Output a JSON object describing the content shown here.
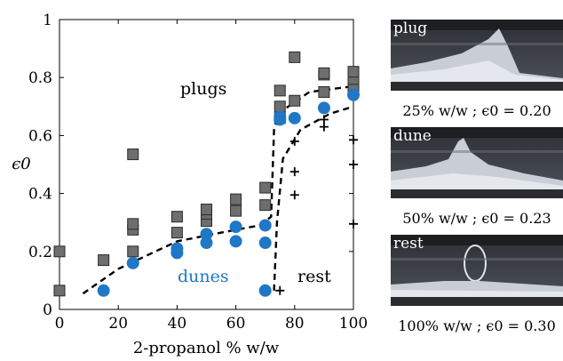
{
  "chart_data": {
    "type": "scatter",
    "xlabel": "2-propanol % w/w",
    "ylabel": "ϵ0",
    "xlim": [
      0,
      100
    ],
    "ylim": [
      0,
      1
    ],
    "xticks": [
      "0",
      "20",
      "40",
      "60",
      "80",
      "100"
    ],
    "yticks": [
      "0",
      "0.2",
      "0.4",
      "0.6",
      "0.8",
      "1"
    ],
    "grid": false,
    "regions": {
      "plugs": "plugs",
      "dunes": "dunes",
      "rest": "rest"
    },
    "series": [
      {
        "marker": "square",
        "color": "#6e6e6e",
        "points": [
          [
            0,
            0.065
          ],
          [
            0,
            0.2
          ],
          [
            15,
            0.17
          ],
          [
            25,
            0.2
          ],
          [
            25,
            0.275
          ],
          [
            25,
            0.295
          ],
          [
            25,
            0.535
          ],
          [
            40,
            0.265
          ],
          [
            40,
            0.32
          ],
          [
            50,
            0.305
          ],
          [
            50,
            0.33
          ],
          [
            50,
            0.345
          ],
          [
            60,
            0.34
          ],
          [
            60,
            0.38
          ],
          [
            70,
            0.36
          ],
          [
            70,
            0.42
          ],
          [
            75,
            0.66
          ],
          [
            75,
            0.7
          ],
          [
            75,
            0.755
          ],
          [
            80,
            0.72
          ],
          [
            80,
            0.87
          ],
          [
            90,
            0.75
          ],
          [
            90,
            0.81
          ],
          [
            90,
            0.815
          ],
          [
            100,
            0.765
          ],
          [
            100,
            0.795
          ],
          [
            100,
            0.82
          ]
        ]
      },
      {
        "marker": "circle",
        "color": "#1f77c6",
        "points": [
          [
            15,
            0.065
          ],
          [
            25,
            0.16
          ],
          [
            40,
            0.195
          ],
          [
            40,
            0.21
          ],
          [
            50,
            0.23
          ],
          [
            50,
            0.26
          ],
          [
            60,
            0.235
          ],
          [
            60,
            0.285
          ],
          [
            70,
            0.065
          ],
          [
            70,
            0.23
          ],
          [
            70,
            0.29
          ],
          [
            75,
            0.655
          ],
          [
            75,
            0.665
          ],
          [
            80,
            0.66
          ],
          [
            90,
            0.695
          ],
          [
            100,
            0.74
          ]
        ]
      },
      {
        "marker": "plus",
        "color": "#000000",
        "points": [
          [
            75,
            0.065
          ],
          [
            80,
            0.395
          ],
          [
            80,
            0.475
          ],
          [
            80,
            0.58
          ],
          [
            90,
            0.63
          ],
          [
            90,
            0.655
          ],
          [
            100,
            0.295
          ],
          [
            100,
            0.5
          ],
          [
            100,
            0.585
          ]
        ]
      }
    ],
    "boundaries": [
      {
        "style": "dashed",
        "points": [
          [
            8,
            0.055
          ],
          [
            20,
            0.14
          ],
          [
            40,
            0.235
          ],
          [
            55,
            0.265
          ],
          [
            68,
            0.29
          ],
          [
            72,
            0.32
          ],
          [
            73,
            0.62
          ],
          [
            75,
            0.68
          ],
          [
            85,
            0.75
          ],
          [
            100,
            0.77
          ]
        ]
      },
      {
        "style": "dashed",
        "points": [
          [
            73,
            0.065
          ],
          [
            74,
            0.3
          ],
          [
            76,
            0.52
          ],
          [
            82,
            0.62
          ],
          [
            92,
            0.675
          ],
          [
            100,
            0.7
          ]
        ]
      }
    ]
  },
  "photos": [
    {
      "tag": "plug",
      "caption": "25% w/w ; ϵ0 = 0.20"
    },
    {
      "tag": "dune",
      "caption": "50% w/w ; ϵ0 = 0.23"
    },
    {
      "tag": "rest",
      "caption": "100% w/w ; ϵ0 = 0.30"
    }
  ]
}
